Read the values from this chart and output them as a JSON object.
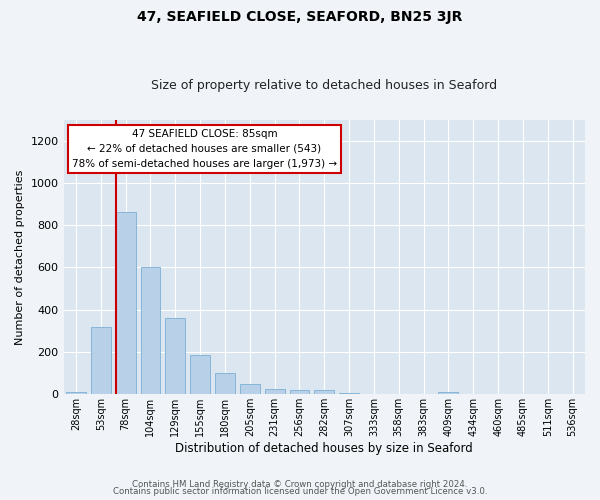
{
  "title": "47, SEAFIELD CLOSE, SEAFORD, BN25 3JR",
  "subtitle": "Size of property relative to detached houses in Seaford",
  "xlabel": "Distribution of detached houses by size in Seaford",
  "ylabel": "Number of detached properties",
  "bar_labels": [
    "28sqm",
    "53sqm",
    "78sqm",
    "104sqm",
    "129sqm",
    "155sqm",
    "180sqm",
    "205sqm",
    "231sqm",
    "256sqm",
    "282sqm",
    "307sqm",
    "333sqm",
    "358sqm",
    "383sqm",
    "409sqm",
    "434sqm",
    "460sqm",
    "485sqm",
    "511sqm",
    "536sqm"
  ],
  "bar_values": [
    10,
    318,
    862,
    600,
    362,
    185,
    100,
    47,
    25,
    20,
    18,
    5,
    0,
    0,
    0,
    12,
    0,
    0,
    0,
    0,
    0
  ],
  "bar_color": "#b8d0e8",
  "bar_edgecolor": "#7bafd4",
  "background_color": "#dce6f0",
  "fig_background_color": "#f0f4f8",
  "grid_color": "#ffffff",
  "ylim": [
    0,
    1300
  ],
  "yticks": [
    0,
    200,
    400,
    600,
    800,
    1000,
    1200
  ],
  "red_line_bar_index": 2,
  "annotation_title": "47 SEAFIELD CLOSE: 85sqm",
  "annotation_line1": "← 22% of detached houses are smaller (543)",
  "annotation_line2": "78% of semi-detached houses are larger (1,973) →",
  "annotation_box_color": "#ffffff",
  "annotation_box_edgecolor": "#cc0000",
  "red_line_color": "#cc0000",
  "footer1": "Contains HM Land Registry data © Crown copyright and database right 2024.",
  "footer2": "Contains public sector information licensed under the Open Government Licence v3.0."
}
